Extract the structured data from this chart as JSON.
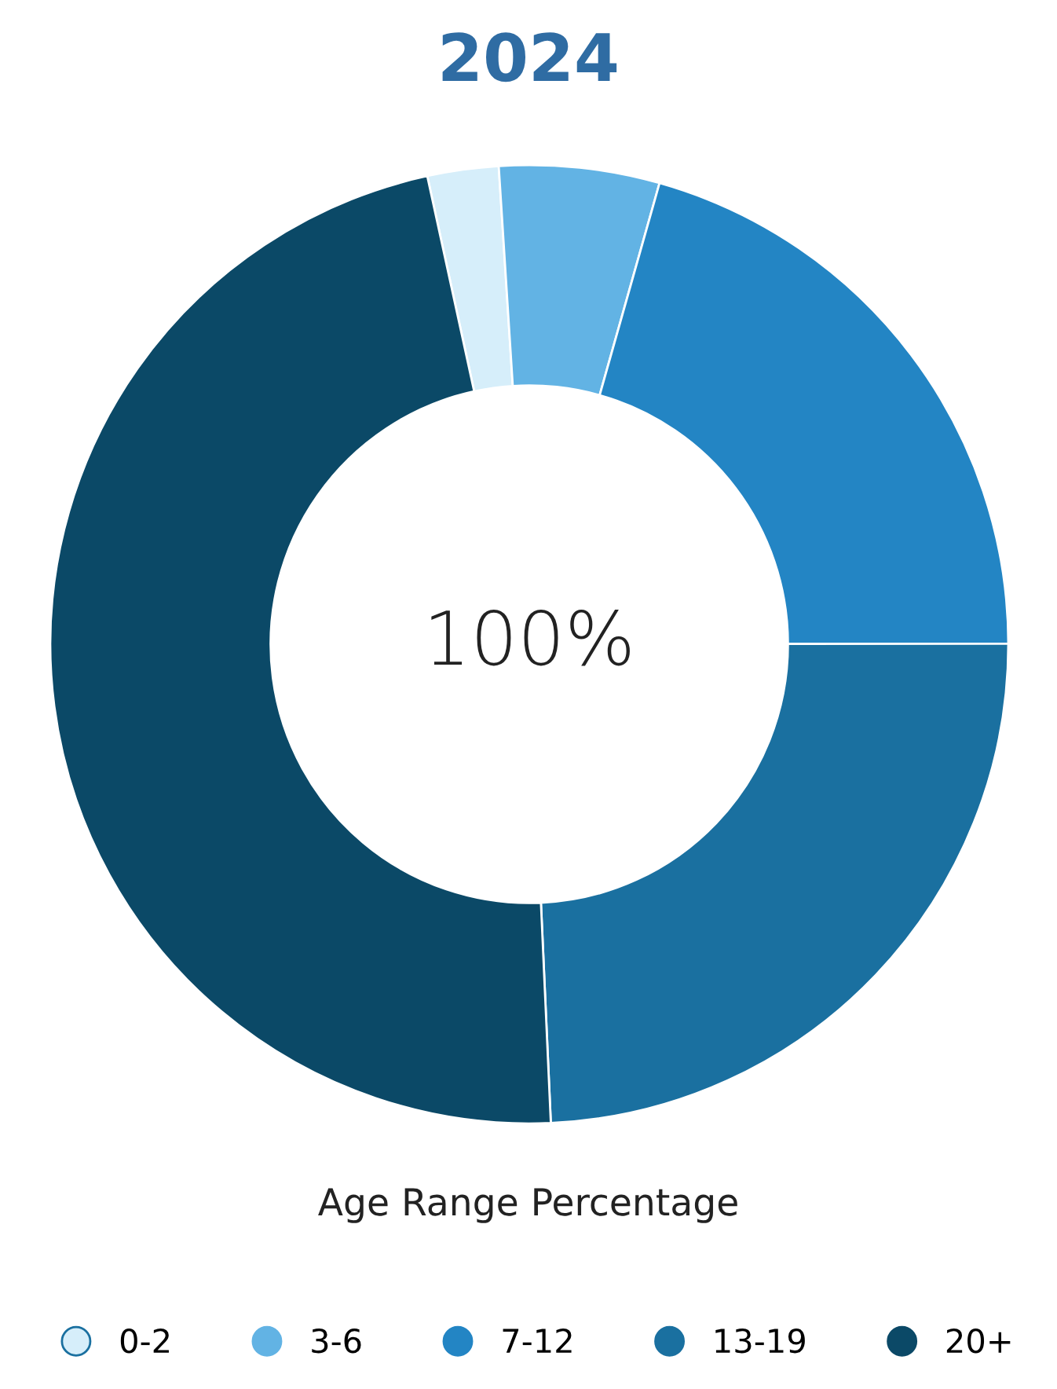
{
  "chart_data": {
    "type": "donut",
    "title": "2024",
    "categories": [
      "0-2",
      "3-6",
      "7-12",
      "13-19",
      "20+"
    ],
    "values": [
      2.4,
      5.4,
      20.6,
      24.3,
      47.3
    ],
    "colors": [
      "#d6eefa",
      "#62b3e4",
      "#2385c4",
      "#1a70a0",
      "#0b4967"
    ],
    "annotations": [
      "100%",
      "Age Range Percentage"
    ],
    "legend": "bottom"
  }
}
